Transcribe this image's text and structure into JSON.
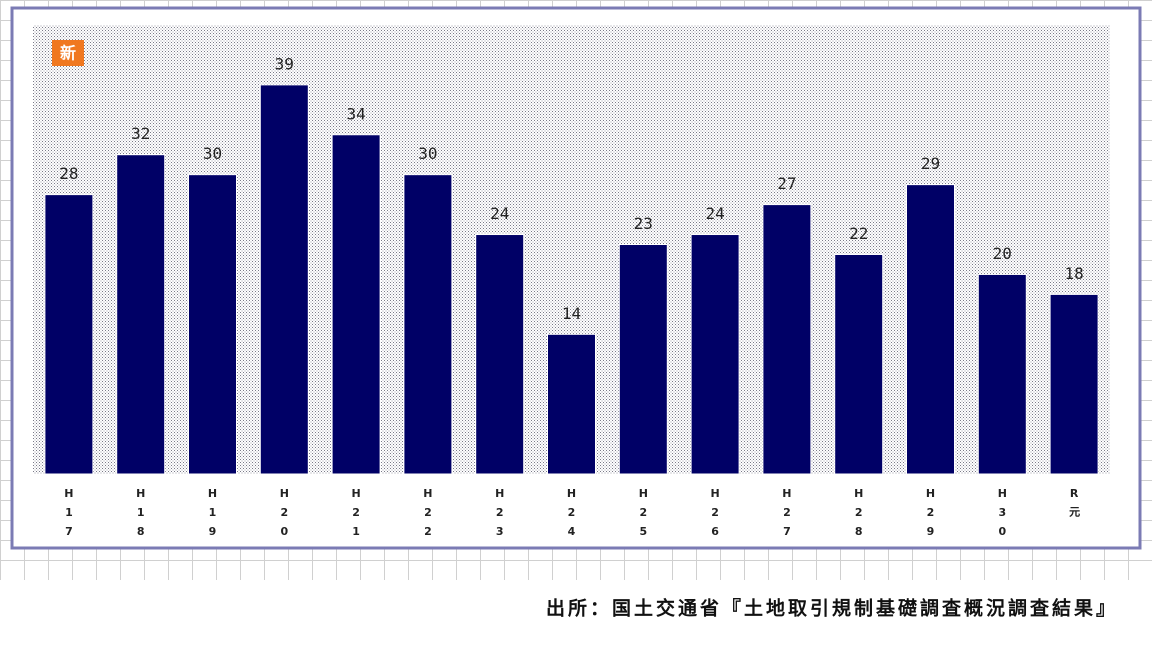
{
  "chart_data": {
    "type": "bar",
    "badge": "新",
    "categories": [
      "H17",
      "H18",
      "H19",
      "H20",
      "H21",
      "H22",
      "H23",
      "H24",
      "H25",
      "H26",
      "H27",
      "H28",
      "H29",
      "H30",
      "R元"
    ],
    "values": [
      28,
      32,
      30,
      39,
      34,
      30,
      24,
      14,
      23,
      24,
      27,
      22,
      29,
      20,
      18
    ],
    "color": "#000066",
    "ylim": [
      0,
      45
    ],
    "source": "出所：国土交通省『土地取引規制基礎調査概況調査結果』"
  }
}
